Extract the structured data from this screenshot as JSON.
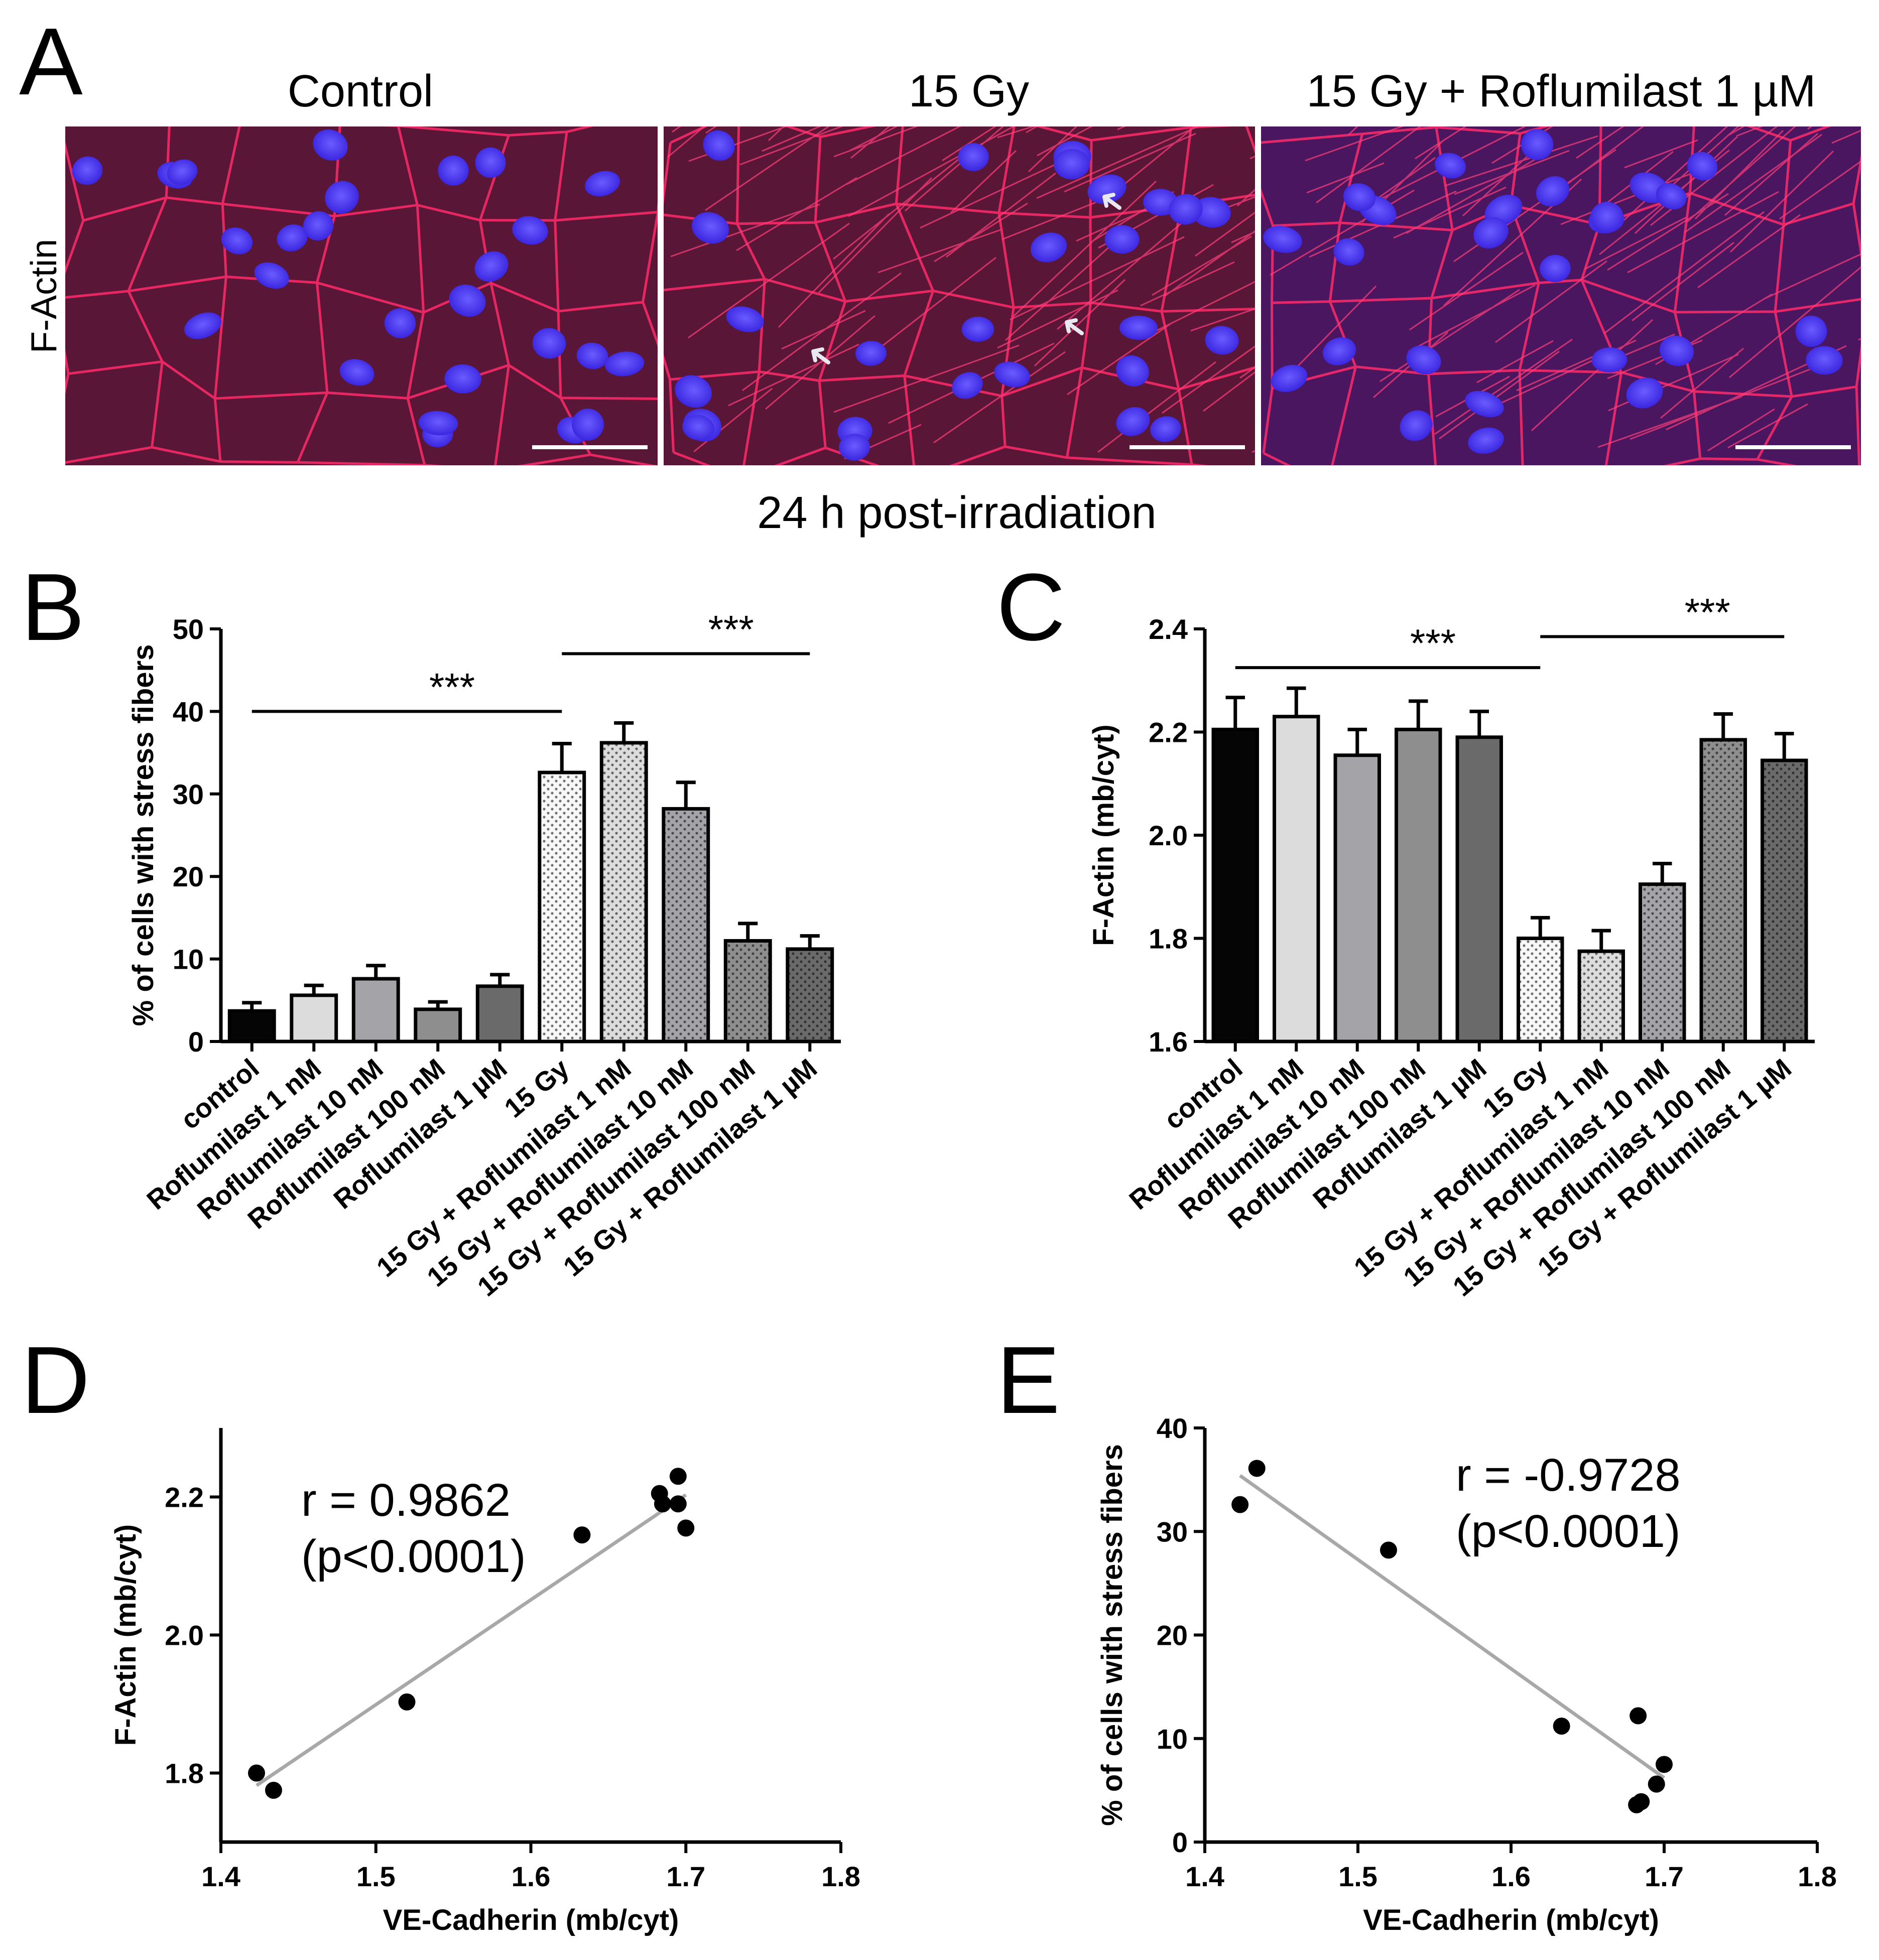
{
  "panel_letters": {
    "A": "A",
    "B": "B",
    "C": "C",
    "D": "D",
    "E": "E"
  },
  "panel_a": {
    "titles": [
      "Control",
      "15 Gy",
      "15 Gy + Roflumilast 1 µM"
    ],
    "row_label": "F-Actin",
    "caption": "24 h post-irradiation"
  },
  "chart_data": [
    {
      "panel": "B",
      "type": "bar",
      "ylabel": "% of cells with stress fibers",
      "xlabel": "",
      "ylim": [
        0,
        50
      ],
      "yticks": [
        0,
        10,
        20,
        30,
        40,
        50
      ],
      "categories": [
        "control",
        "Roflumilast 1 nM",
        "Roflumilast 10 nM",
        "Roflumilast 100 nM",
        "Roflumilast 1 µM",
        "15 Gy",
        "15 Gy + Roflumilast 1 nM",
        "15 Gy + Roflumilast 10 nM",
        "15 Gy + Roflumilast 100 nM",
        "15 Gy + Roflumilast 1 µM"
      ],
      "values": [
        3.7,
        5.6,
        7.6,
        3.9,
        6.7,
        32.6,
        36.2,
        28.2,
        12.2,
        11.2
      ],
      "errors": [
        1.0,
        1.2,
        1.6,
        0.9,
        1.4,
        3.5,
        2.4,
        3.2,
        2.1,
        1.6
      ],
      "fill_colors": [
        "#050505",
        "#dcdcdc",
        "#a4a4a8",
        "#8e8e8e",
        "#6a6a6a",
        "#f7f7f7",
        "#dcdcdc",
        "#a4a4a8",
        "#8e8e8e",
        "#6a6a6a"
      ],
      "dotted": [
        false,
        false,
        false,
        false,
        false,
        true,
        true,
        true,
        true,
        true
      ],
      "significance": [
        {
          "from": 0,
          "to": 5,
          "y": 40,
          "label": "***"
        },
        {
          "from": 5,
          "to": 9,
          "y": 47,
          "label": "***"
        }
      ]
    },
    {
      "panel": "C",
      "type": "bar",
      "ylabel": "F-Actin (mb/cyt)",
      "xlabel": "",
      "ylim": [
        1.6,
        2.4
      ],
      "yticks": [
        1.6,
        1.8,
        2.0,
        2.2,
        2.4
      ],
      "categories": [
        "control",
        "Roflumilast 1 nM",
        "Roflumilast 10 nM",
        "Roflumilast 100 nM",
        "Roflumilast 1 µM",
        "15 Gy",
        "15 Gy + Roflumilast 1 nM",
        "15 Gy + Roflumilast 10 nM",
        "15 Gy + Roflumilast 100 nM",
        "15 Gy + Roflumilast 1 µM"
      ],
      "values": [
        2.205,
        2.23,
        2.155,
        2.205,
        2.19,
        1.8,
        1.775,
        1.905,
        2.185,
        2.145
      ],
      "errors": [
        0.062,
        0.055,
        0.05,
        0.055,
        0.05,
        0.04,
        0.04,
        0.04,
        0.05,
        0.052
      ],
      "fill_colors": [
        "#050505",
        "#dcdcdc",
        "#a4a4a8",
        "#8e8e8e",
        "#6a6a6a",
        "#f7f7f7",
        "#dcdcdc",
        "#a4a4a8",
        "#8e8e8e",
        "#6a6a6a"
      ],
      "dotted": [
        false,
        false,
        false,
        false,
        false,
        true,
        true,
        true,
        true,
        true
      ],
      "significance": [
        {
          "from": 0,
          "to": 5,
          "y": 2.325,
          "label": "***"
        },
        {
          "from": 5,
          "to": 9,
          "y": 2.385,
          "label": "***"
        }
      ]
    },
    {
      "panel": "D",
      "type": "scatter",
      "xlabel": "VE-Cadherin (mb/cyt)",
      "ylabel": "F-Actin (mb/cyt)",
      "xlim": [
        1.4,
        1.8
      ],
      "ylim": [
        1.7,
        2.3
      ],
      "xticks": [
        1.4,
        1.5,
        1.6,
        1.7,
        1.8
      ],
      "yticks": [
        1.8,
        2.0,
        2.2
      ],
      "x": [
        1.423,
        1.434,
        1.52,
        1.633,
        1.683,
        1.685,
        1.695,
        1.695,
        1.7
      ],
      "y": [
        1.8,
        1.775,
        1.903,
        2.145,
        2.205,
        2.19,
        2.23,
        2.19,
        2.155
      ],
      "fit_line": {
        "x": [
          1.423,
          1.7
        ],
        "y": [
          1.782,
          2.203
        ]
      },
      "annotation": [
        "r = 0.9862",
        "(p<0.0001)"
      ]
    },
    {
      "panel": "E",
      "type": "scatter",
      "xlabel": "VE-Cadherin (mb/cyt)",
      "ylabel": "% of cells with stress fibers",
      "xlim": [
        1.4,
        1.8
      ],
      "ylim": [
        0,
        40
      ],
      "xticks": [
        1.4,
        1.5,
        1.6,
        1.7,
        1.8
      ],
      "yticks": [
        0,
        10,
        20,
        30,
        40
      ],
      "x": [
        1.423,
        1.434,
        1.52,
        1.633,
        1.683,
        1.685,
        1.682,
        1.695,
        1.7
      ],
      "y": [
        32.6,
        36.1,
        28.2,
        11.2,
        12.2,
        3.9,
        3.6,
        5.6,
        7.5
      ],
      "fit_line": {
        "x": [
          1.423,
          1.7
        ],
        "y": [
          35.4,
          6.2
        ]
      },
      "annotation": [
        "r = -0.9728",
        "(p<0.0001)"
      ]
    }
  ]
}
